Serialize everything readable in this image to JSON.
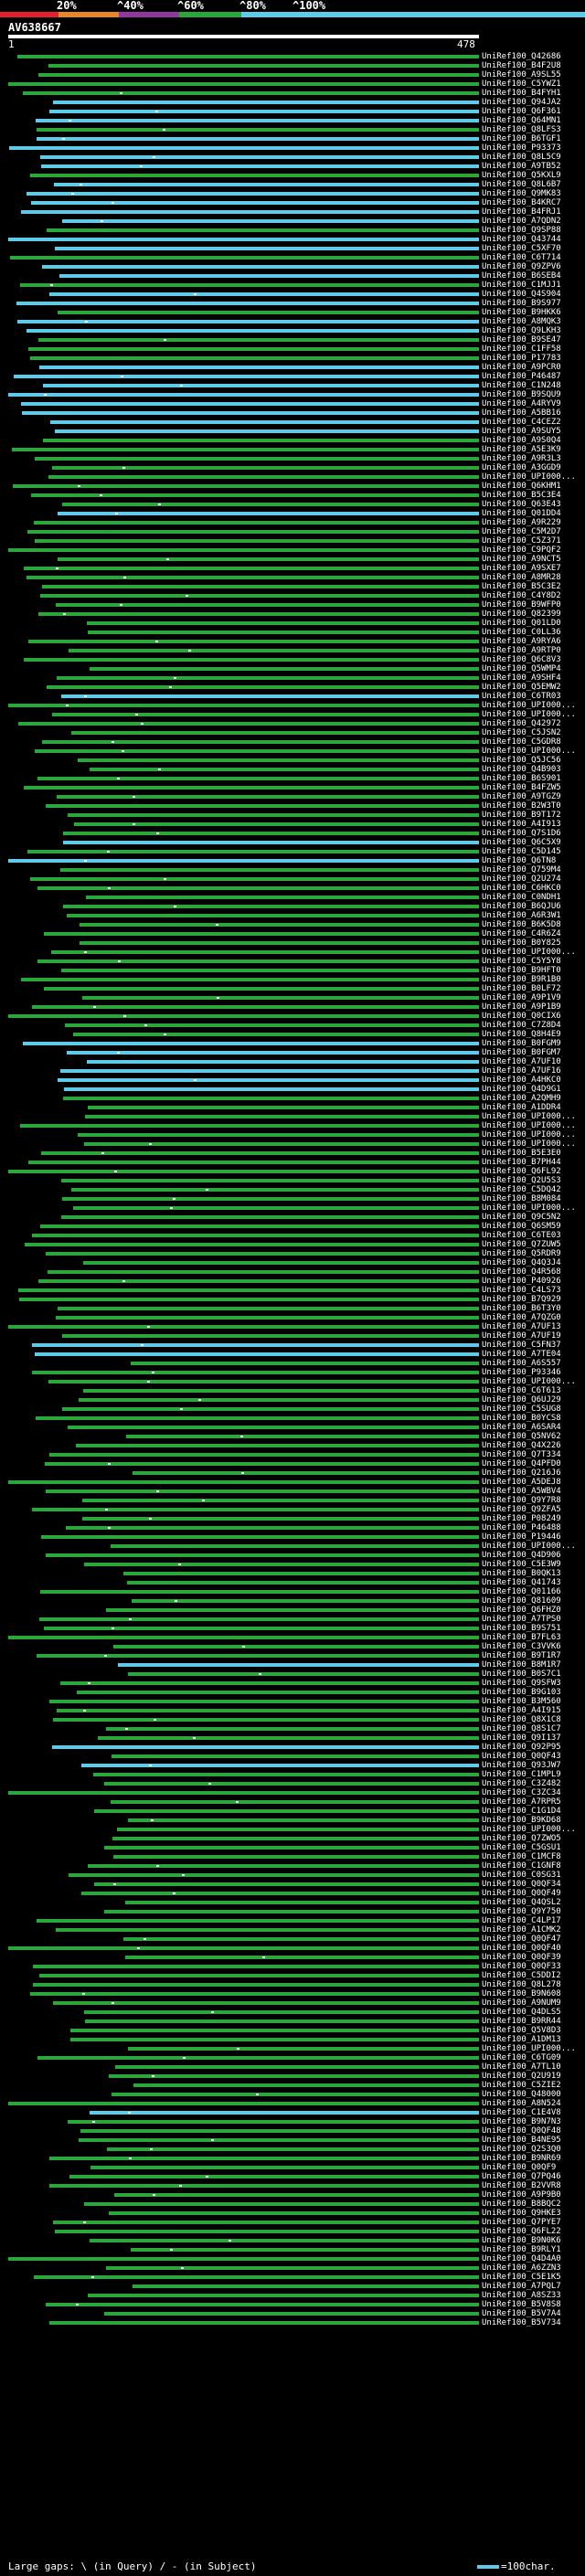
{
  "scale": {
    "ticks": [
      "20%",
      "^40%",
      "^60%",
      "^80%",
      "^100%"
    ],
    "colors": [
      "#e5202a",
      "#e8842a",
      "#9038a0",
      "#2aa63a",
      "#5fcbe8"
    ]
  },
  "query": {
    "id": "AV638667",
    "start": "1",
    "end": "478"
  },
  "colors": {
    "identity_100": "#5fcbe8",
    "identity_80": "#2aa63a"
  },
  "hits": [
    "UniRef100_Q42686",
    "UniRef100_B4F2U8",
    "UniRef100_A9SL55",
    "UniRef100_C5YWZ1",
    "UniRef100_B4FYH1",
    "UniRef100_Q94JA2",
    "UniRef100_Q6F361",
    "UniRef100_Q64MN1",
    "UniRef100_Q8LFS3",
    "UniRef100_B6TGF1",
    "UniRef100_P93373",
    "UniRef100_Q8L5C9",
    "UniRef100_A9TB52",
    "UniRef100_Q5KXL9",
    "UniRef100_Q8L6B7",
    "UniRef100_Q9MK83",
    "UniRef100_B4KRC7",
    "UniRef100_B4FRJ1",
    "UniRef100_A7QDN2",
    "UniRef100_Q9SP88",
    "UniRef100_Q43744",
    "UniRef100_C5XF70",
    "UniRef100_C6T714",
    "UniRef100_Q9ZPV6",
    "UniRef100_B6SEB4",
    "UniRef100_C1MJJ1",
    "UniRef100_Q4S904",
    "UniRef100_B9S977",
    "UniRef100_B9HKK6",
    "UniRef100_A8MQK3",
    "UniRef100_Q9LKH3",
    "UniRef100_B9SE47",
    "UniRef100_C1FF58",
    "UniRef100_P17783",
    "UniRef100_A9PCR0",
    "UniRef100_P46487",
    "UniRef100_C1N248",
    "UniRef100_B9SQU9",
    "UniRef100_A4RYV9",
    "UniRef100_A5BB16",
    "UniRef100_C4CEZ2",
    "UniRef100_A9SUY5",
    "UniRef100_A9S0Q4",
    "UniRef100_A5E3K9",
    "UniRef100_A9R3L3",
    "UniRef100_A3GGD9",
    "UniRef100_UPI000...",
    "UniRef100_Q6KHM1",
    "UniRef100_B5C3E4",
    "UniRef100_Q63E43",
    "UniRef100_Q01DD4",
    "UniRef100_A9R229",
    "UniRef100_C5M2D7",
    "UniRef100_C5Z371",
    "UniRef100_C9PQF2",
    "UniRef100_A9NCT5",
    "UniRef100_A9SXE7",
    "UniRef100_A8MR28",
    "UniRef100_B5C3E2",
    "UniRef100_C4Y8D2",
    "UniRef100_B9WFP0",
    "UniRef100_Q82399",
    "UniRef100_Q01LD0",
    "UniRef100_C0LL36",
    "UniRef100_A9RYA6",
    "UniRef100_A9RTP0",
    "UniRef100_Q6C8V3",
    "UniRef100_Q5WMP4",
    "UniRef100_A9SHF4",
    "UniRef100_Q5EMW2",
    "UniRef100_C6TR03",
    "UniRef100_UPI000...",
    "UniRef100_UPI000...",
    "UniRef100_Q42972",
    "UniRef100_C5JSN2",
    "UniRef100_C5GDR8",
    "UniRef100_UPI000...",
    "UniRef100_Q5JC56",
    "UniRef100_Q4B903",
    "UniRef100_B6S901",
    "UniRef100_B4FZW5",
    "UniRef100_A9TGZ9",
    "UniRef100_B2W3T0",
    "UniRef100_B9T172",
    "UniRef100_A4I913",
    "UniRef100_Q7S1D6",
    "UniRef100_Q6C5X9",
    "UniRef100_C5D145",
    "UniRef100_Q6TN8",
    "UniRef100_Q759M4",
    "UniRef100_Q2U274",
    "UniRef100_C6HKC0",
    "UniRef100_C0NDH1",
    "UniRef100_B6QJU6",
    "UniRef100_A6R3W1",
    "UniRef100_B6K5D8",
    "UniRef100_C4R6Z4",
    "UniRef100_B0Y825",
    "UniRef100_UPI000...",
    "UniRef100_C5Y5Y8",
    "UniRef100_B9HFT0",
    "UniRef100_B9R1B0",
    "UniRef100_B0LF72",
    "UniRef100_A9P1V9",
    "UniRef100_A9P1B9",
    "UniRef100_Q0CIX6",
    "UniRef100_C7Z8D4",
    "UniRef100_Q8H4E9",
    "UniRef100_B0FGM9",
    "UniRef100_B0FGM7",
    "UniRef100_A7UF10",
    "UniRef100_A7UF16",
    "UniRef100_A4HKC0",
    "UniRef100_Q4D9G1",
    "UniRef100_A2QMH9",
    "UniRef100_A1DDR4",
    "UniRef100_UPI000...",
    "UniRef100_UPI000...",
    "UniRef100_UPI000...",
    "UniRef100_UPI000...",
    "UniRef100_B5E3E0",
    "UniRef100_B7PH44",
    "UniRef100_Q6FL92",
    "UniRef100_Q2U5S3",
    "UniRef100_C5DQ42",
    "UniRef100_B8M084",
    "UniRef100_UPI000...",
    "UniRef100_Q9C5N2",
    "UniRef100_Q6SM59",
    "UniRef100_C6TE03",
    "UniRef100_Q7ZUW5",
    "UniRef100_Q5RDR9",
    "UniRef100_Q4Q3J4",
    "UniRef100_Q4R568",
    "UniRef100_P40926",
    "UniRef100_C4LS73",
    "UniRef100_B7Q929",
    "UniRef100_B6T3Y0",
    "UniRef100_A7QZG0",
    "UniRef100_A7UF13",
    "UniRef100_A7UF19",
    "UniRef100_C5FN37",
    "UniRef100_A7TE04",
    "UniRef100_A6S557",
    "UniRef100_P93346",
    "UniRef100_UPI000...",
    "UniRef100_C6T613",
    "UniRef100_Q6UJ29",
    "UniRef100_C5SUG8",
    "UniRef100_B0YCS8",
    "UniRef100_A6SAR4",
    "UniRef100_Q5NV62",
    "UniRef100_Q4X226",
    "UniRef100_Q7T334",
    "UniRef100_Q4PFD0",
    "UniRef100_Q216J6",
    "UniRef100_A5DEJ8",
    "UniRef100_A5WBV4",
    "UniRef100_Q9Y7R8",
    "UniRef100_Q9ZFA5",
    "UniRef100_P08249",
    "UniRef100_P46488",
    "UniRef100_P19446",
    "UniRef100_UPI000...",
    "UniRef100_Q4D906",
    "UniRef100_C5E3W9",
    "UniRef100_B0QK13",
    "UniRef100_Q41743",
    "UniRef100_Q01166",
    "UniRef100_Q81609",
    "UniRef100_Q6FHZ0",
    "UniRef100_A7TPS0",
    "UniRef100_B9S751",
    "UniRef100_B7FL63",
    "UniRef100_C3VVK6",
    "UniRef100_B9T1R7",
    "UniRef100_B8M1R7",
    "UniRef100_B0S7C1",
    "UniRef100_Q9SFW3",
    "UniRef100_B9G103",
    "UniRef100_B3M560",
    "UniRef100_A4I915",
    "UniRef100_Q8X1C8",
    "UniRef100_Q8S1C7",
    "UniRef100_Q9I137",
    "UniRef100_Q92P95",
    "UniRef100_Q0QF43",
    "UniRef100_Q93JW7",
    "UniRef100_C1MPL9",
    "UniRef100_C3Z482",
    "UniRef100_C3ZC34",
    "UniRef100_A7RPR5",
    "UniRef100_C1G1D4",
    "UniRef100_B9KD68",
    "UniRef100_UPI000...",
    "UniRef100_Q7ZWO5",
    "UniRef100_C5GSU1",
    "UniRef100_C1MCF8",
    "UniRef100_C1GNF8",
    "UniRef100_C0SG31",
    "UniRef100_Q0QF34",
    "UniRef100_Q0QF49",
    "UniRef100_Q4QSL2",
    "UniRef100_Q9Y750",
    "UniRef100_C4LP17",
    "UniRef100_A1CMK2",
    "UniRef100_Q0QF47",
    "UniRef100_Q0QF40",
    "UniRef100_Q0QF39",
    "UniRef100_Q0QF33",
    "UniRef100_C5DDI2",
    "UniRef100_Q8L278",
    "UniRef100_B9N608",
    "UniRef100_A9NUM9",
    "UniRef100_Q4DLS5",
    "UniRef100_B9RR44",
    "UniRef100_Q5V8D3",
    "UniRef100_A1DM13",
    "UniRef100_UPI000...",
    "UniRef100_C6TG09",
    "UniRef100_A7TL10",
    "UniRef100_Q2U919",
    "UniRef100_C5ZIE2",
    "UniRef100_Q48000",
    "UniRef100_A8N524",
    "UniRef100_C1E4V8",
    "UniRef100_B9N7N3",
    "UniRef100_Q0QF48",
    "UniRef100_B4NE95",
    "UniRef100_Q2S3Q0",
    "UniRef100_B9NR69",
    "UniRef100_Q0QF9",
    "UniRef100_Q7PQ46",
    "UniRef100_B2VVR8",
    "UniRef100_A9P9B0",
    "UniRef100_B8BQC2",
    "UniRef100_Q9HKE3",
    "UniRef100_Q7PYE7",
    "UniRef100_Q6FL22",
    "UniRef100_B9N0K6",
    "UniRef100_B9RLY1",
    "UniRef100_Q4D4A0",
    "UniRef100_A6ZZN3",
    "UniRef100_C5E1K5",
    "UniRef100_A7PQL7",
    "UniRef100_A8SZ33",
    "UniRef100_B5V8S8",
    "UniRef100_B5V7A4",
    "UniRef100_B5V734"
  ],
  "legend": {
    "text": "Large gaps: \\ (in Query) / - (in Subject)",
    "scale_text": "=100char."
  }
}
